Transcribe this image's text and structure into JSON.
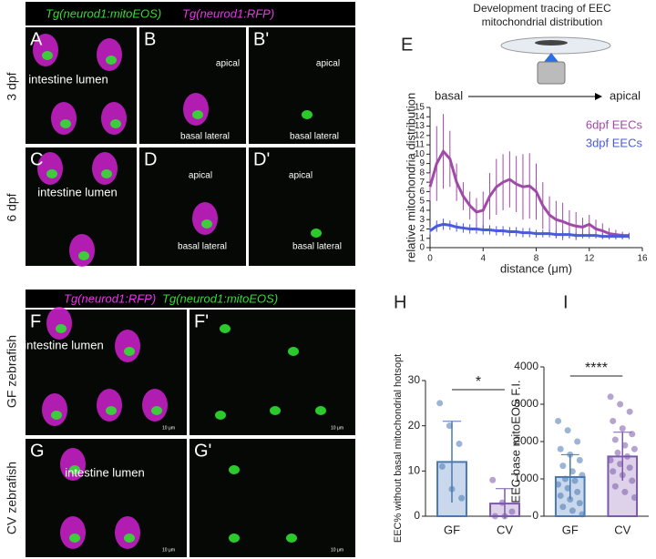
{
  "panels": {
    "top_header": [
      "Tg(neurod1:mitoEOS)",
      "Tg(neurod1:RFP)"
    ],
    "bottom_header": [
      "Tg(neurod1:RFP)",
      "Tg(neurod1:mitoEOS)"
    ],
    "row_labels": [
      "3 dpf",
      "6 dpf",
      "GF zebrafish",
      "CV zebrafish"
    ],
    "letters": [
      "A",
      "B",
      "B'",
      "C",
      "D",
      "D'",
      "E",
      "F",
      "F'",
      "G",
      "G'",
      "H",
      "I"
    ],
    "lumen": "intestine lumen",
    "apical": "apical",
    "basal_lateral": "basal lateral",
    "scale": "10 μm",
    "device_caption": [
      "Development tracing of EEC",
      "mitochondrial distribution"
    ]
  },
  "chart_data": [
    {
      "type": "line",
      "ylabel": "relative mitochondria distribution",
      "xlabel": "distance (μm)",
      "annotations": [
        "basal",
        "apical"
      ],
      "x": [
        0,
        0.5,
        1,
        1.5,
        2,
        2.5,
        3,
        3.5,
        4,
        4.5,
        5,
        5.5,
        6,
        6.5,
        7,
        7.5,
        8,
        8.5,
        9,
        9.5,
        10,
        10.5,
        11,
        11.5,
        12,
        12.5,
        13,
        13.5,
        14,
        14.5,
        15
      ],
      "series": [
        {
          "name": "6dpf EECs",
          "color": "#a04aa8",
          "values": [
            6.5,
            9,
            10.3,
            9.5,
            7,
            5.5,
            4.5,
            3.8,
            4,
            5.5,
            6.5,
            7,
            7.3,
            6.8,
            6.5,
            6.6,
            6,
            4.5,
            3.5,
            3,
            2.8,
            2.5,
            2.3,
            2.2,
            2.5,
            2,
            1.8,
            1.5,
            1.4,
            1.3,
            1.3
          ],
          "errors": [
            1.5,
            4,
            4,
            3,
            2,
            1.5,
            1.5,
            1.5,
            2,
            2.5,
            3,
            3,
            3,
            3,
            3.5,
            3.5,
            3,
            2.5,
            2,
            2,
            2,
            1.5,
            1.5,
            1,
            1,
            1,
            0.8,
            0.6,
            0.5,
            0.4,
            0.3
          ]
        },
        {
          "name": "3dpf EECs",
          "color": "#4a5ad8",
          "values": [
            1.8,
            2.3,
            2.5,
            2.4,
            2.2,
            2.1,
            2,
            2,
            1.9,
            1.9,
            1.8,
            1.8,
            1.7,
            1.7,
            1.6,
            1.6,
            1.5,
            1.5,
            1.5,
            1.4,
            1.4,
            1.4,
            1.3,
            1.3,
            1.3,
            1.3,
            1.2,
            1.2,
            1.2,
            1.2,
            1.2
          ],
          "errors": [
            0.4,
            0.6,
            0.6,
            0.5,
            0.5,
            0.5,
            0.5,
            0.5,
            0.5,
            0.5,
            0.5,
            0.5,
            0.5,
            0.5,
            0.5,
            0.5,
            0.4,
            0.4,
            0.4,
            0.4,
            0.4,
            0.4,
            0.3,
            0.3,
            0.3,
            0.3,
            0.3,
            0.3,
            0.3,
            0.3,
            0.3
          ]
        }
      ],
      "xlim": [
        0,
        16
      ],
      "xticks": [
        0,
        4,
        8,
        12,
        16
      ],
      "ylim": [
        0,
        15
      ],
      "yticks": [
        0,
        1,
        2,
        3,
        4,
        5,
        6,
        7,
        8,
        9,
        10,
        11,
        12,
        13,
        14,
        15
      ]
    },
    {
      "type": "bar",
      "ylabel": "EEC% without basal mitochondrial hotsopt",
      "annotation": "*",
      "categories": [
        "GF",
        "CV"
      ],
      "values": [
        12,
        2.8
      ],
      "errors": [
        9,
        3.3
      ],
      "colors": [
        "#4a78b0",
        "#7a5aa8"
      ],
      "fills": [
        "#c9d8ec",
        "#ddd2ea"
      ],
      "points": [
        [
          25,
          20,
          16,
          11,
          6,
          4
        ],
        [
          8,
          3,
          1,
          0,
          0
        ]
      ],
      "ylim": [
        0,
        30
      ],
      "yticks": [
        0,
        10,
        20,
        30
      ]
    },
    {
      "type": "bar",
      "ylabel": "EEC base mitoEOS F.I.",
      "annotation": "****",
      "categories": [
        "GF",
        "CV"
      ],
      "values": [
        1050,
        1600
      ],
      "errors": [
        600,
        650
      ],
      "colors": [
        "#4a78b0",
        "#7a5aa8"
      ],
      "fills": [
        "#c9d8ec",
        "#ddd2ea"
      ],
      "points": [
        [
          2550,
          2300,
          2000,
          1800,
          1650,
          1500,
          1350,
          1200,
          1100,
          1000,
          950,
          850,
          750,
          650,
          550,
          450,
          350,
          250,
          150,
          50
        ],
        [
          3200,
          3000,
          2800,
          2550,
          2350,
          2200,
          2050,
          1900,
          1800,
          1700,
          1600,
          1500,
          1400,
          1300,
          1200,
          1100,
          950,
          800,
          650,
          500
        ]
      ],
      "ylim": [
        0,
        4000
      ],
      "yticks": [
        0,
        1000,
        2000,
        3000,
        4000
      ]
    }
  ]
}
